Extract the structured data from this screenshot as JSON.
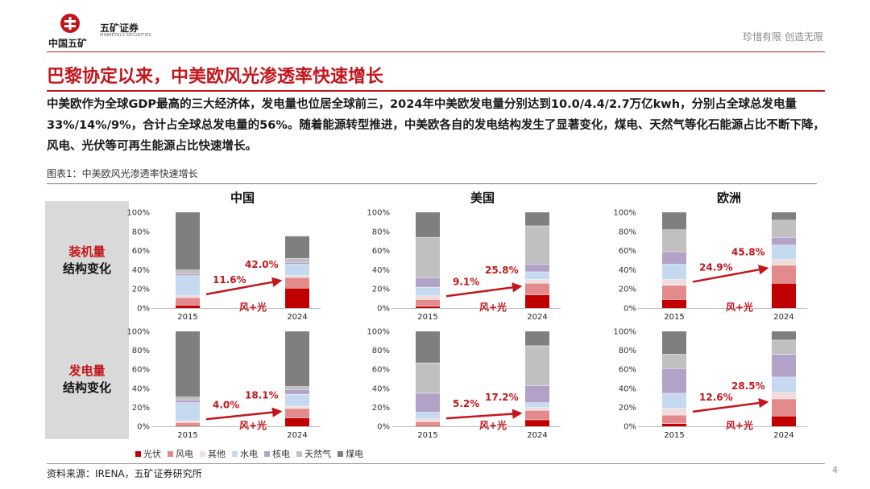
{
  "header": {
    "logo_group": "中国五矿",
    "logo_company": "五矿证券",
    "logo_company_en": "MINMETALS SECURITIES",
    "slogan": "珍惜有限  创造无限"
  },
  "title": "巴黎协定以来，中美欧风光渗透率快速增长",
  "summary": "中美欧作为全球GDP最高的三大经济体，发电量也位居全球前三，2024年中美欧发电量分别达到10.0/4.4/2.7万亿kwh，分别占全球总发电量33%/14%/9%，合计占全球总发电量的56%。随着能源转型推进，中美欧各自的发电结构发生了显著变化，煤电、天然气等化石能源占比不断下降，风电、光伏等可再生能源占比快速增长。",
  "figure_label": "图表1：中美欧风光渗透率快速增长",
  "row_labels": [
    {
      "line1": "装机量",
      "line2": "结构变化"
    },
    {
      "line1": "发电量",
      "line2": "结构变化"
    }
  ],
  "arrow_label": "风+光",
  "source": "资料来源：IRENA，五矿证券研究所",
  "page_number": "4",
  "colors": {
    "brand_red": "#c3161c",
    "光伏": "#c00000",
    "风电": "#e38a8d",
    "其他": "#f2dcdb",
    "水电": "#c5d9f1",
    "核电": "#b3a2c7",
    "天然气": "#c0c0c0",
    "煤电": "#7f7f7f"
  },
  "chart_data": {
    "type": "bar",
    "stacked": true,
    "categories": [
      "2015",
      "2024"
    ],
    "ylim": [
      0,
      100
    ],
    "y_ticks": [
      "0%",
      "20%",
      "40%",
      "60%",
      "80%",
      "100%"
    ],
    "legend": [
      "光伏",
      "风电",
      "其他",
      "水电",
      "核电",
      "天然气",
      "煤电"
    ],
    "legend_position": "bottom",
    "panels": [
      {
        "region": "中国",
        "metric": "装机量",
        "series": {
          "2015": [
            3,
            8,
            2,
            21,
            2,
            4,
            60
          ],
          "2024": [
            21,
            11,
            2,
            12,
            2,
            4,
            23
          ]
        },
        "annotations": [
          "11.6%",
          "42.0%"
        ]
      },
      {
        "region": "美国",
        "metric": "装机量",
        "series": {
          "2015": [
            2,
            7,
            4,
            9,
            10,
            42,
            26
          ],
          "2024": [
            14,
            12,
            4,
            8,
            8,
            40,
            14
          ]
        },
        "annotations": [
          "9.1%",
          "25.8%"
        ]
      },
      {
        "region": "欧洲",
        "metric": "装机量",
        "series": {
          "2015": [
            9,
            15,
            6,
            16,
            13,
            23,
            18
          ],
          "2024": [
            26,
            19,
            6,
            15,
            8,
            18,
            8
          ]
        },
        "annotations": [
          "24.9%",
          "45.8%"
        ]
      },
      {
        "region": "中国",
        "metric": "发电量",
        "series": {
          "2015": [
            1,
            3,
            2,
            19,
            3,
            3,
            69
          ],
          "2024": [
            9,
            10,
            2,
            13,
            5,
            3,
            58
          ]
        },
        "annotations": [
          "4.0%",
          "18.1%"
        ]
      },
      {
        "region": "美国",
        "metric": "发电量",
        "series": {
          "2015": [
            1,
            4,
            3,
            7,
            20,
            32,
            33
          ],
          "2024": [
            7,
            10,
            3,
            5,
            18,
            42,
            15
          ]
        },
        "annotations": [
          "5.2%",
          "17.2%"
        ]
      },
      {
        "region": "欧洲",
        "metric": "发电量",
        "series": {
          "2015": [
            3,
            9,
            7,
            16,
            26,
            15,
            24
          ],
          "2024": [
            11,
            18,
            7,
            16,
            24,
            15,
            9
          ]
        },
        "annotations": [
          "12.6%",
          "28.5%"
        ]
      }
    ]
  }
}
